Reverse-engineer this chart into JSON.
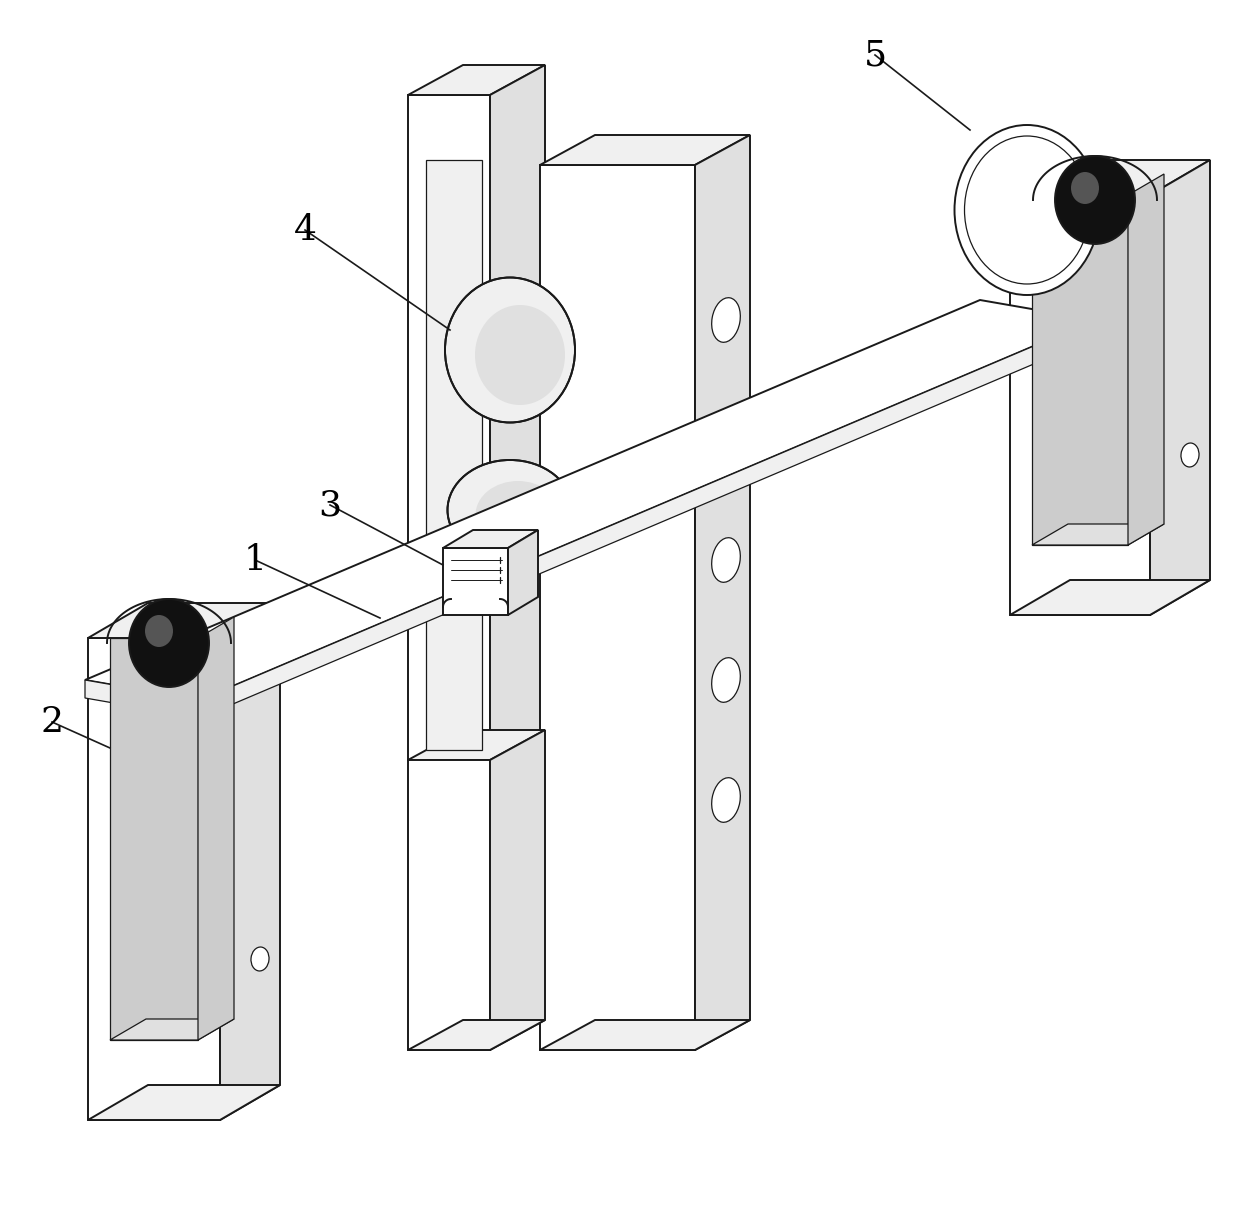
{
  "bg_color": "#ffffff",
  "lc": "#1a1a1a",
  "face_white": "#ffffff",
  "face_light": "#f0f0f0",
  "face_mid": "#e0e0e0",
  "face_dark": "#cccccc",
  "lw_main": 1.4,
  "lw_inner": 0.9,
  "label_fontsize": 26
}
